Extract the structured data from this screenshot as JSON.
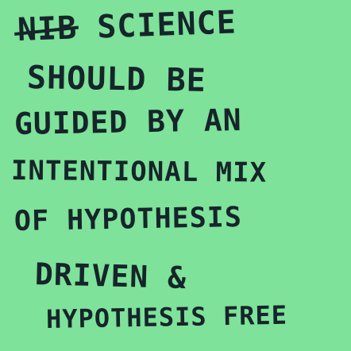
{
  "note": {
    "background_color": "#7ee29a",
    "ink_color": "#16252a",
    "struck_word": "NIB",
    "lines": [
      " SCIENCE",
      "SHOULD BE",
      "GUIDED BY AN",
      "INTENTIONAL MIX",
      "OF HYPOTHESIS",
      "DRIVEN &",
      "HYPOTHESIS FREE"
    ]
  }
}
